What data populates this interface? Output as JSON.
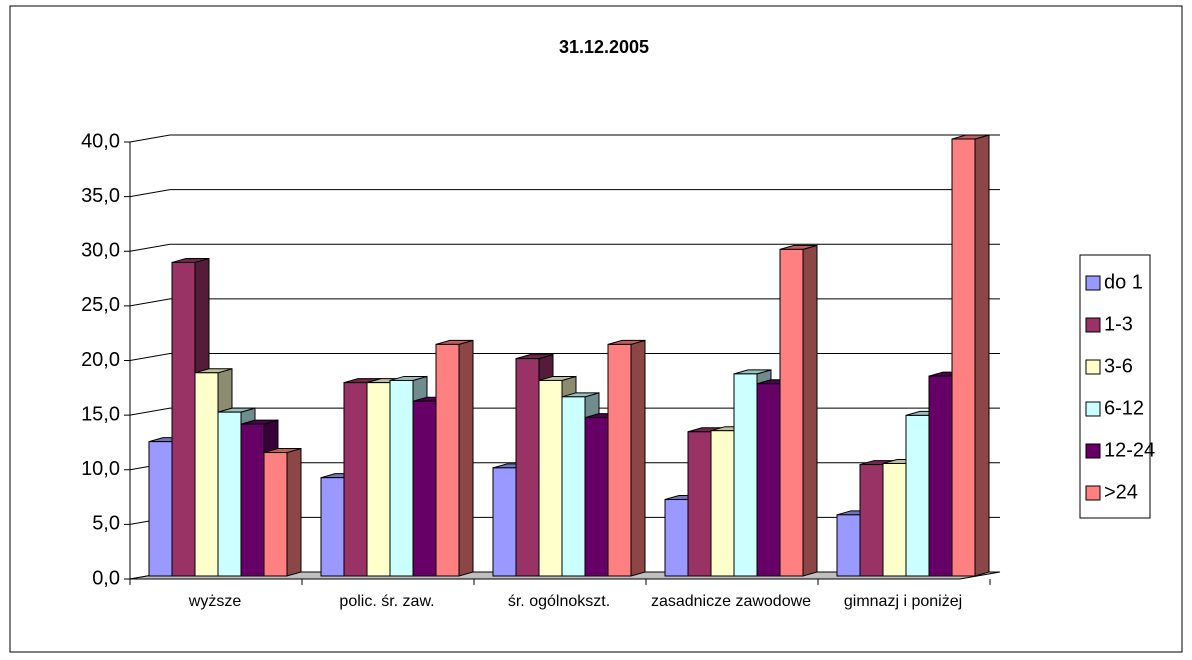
{
  "chart_data": {
    "type": "bar3d",
    "title": "31.12.2005",
    "categories": [
      "wyższe",
      "polic. śr. zaw.",
      "śr. ogólnokszt.",
      "zasadnicze zawodowe",
      "gimnazj i poniżej"
    ],
    "series": [
      {
        "name": "do 1",
        "color": "#9999ff",
        "values": [
          12.3,
          9.0,
          9.9,
          7.0,
          5.6
        ]
      },
      {
        "name": "1-3",
        "color": "#993366",
        "values": [
          28.7,
          17.7,
          19.9,
          13.2,
          10.2
        ]
      },
      {
        "name": "3-6",
        "color": "#ffffcc",
        "values": [
          18.6,
          17.7,
          17.9,
          13.3,
          10.3
        ]
      },
      {
        "name": "6-12",
        "color": "#ccffff",
        "values": [
          15.0,
          17.9,
          16.4,
          18.5,
          14.7
        ]
      },
      {
        "name": "12-24",
        "color": "#660066",
        "values": [
          13.9,
          16.0,
          14.5,
          17.6,
          18.3
        ]
      },
      {
        "name": ">24",
        "color": "#ff8080",
        "values": [
          11.3,
          21.2,
          21.2,
          29.9,
          40.0
        ]
      }
    ],
    "ylim": [
      0,
      40
    ],
    "yticks": [
      {
        "value": 0,
        "label": "0,0"
      },
      {
        "value": 5,
        "label": "5,0"
      },
      {
        "value": 10,
        "label": "10,0"
      },
      {
        "value": 15,
        "label": "15,0"
      },
      {
        "value": 20,
        "label": "20,0"
      },
      {
        "value": 25,
        "label": "25,0"
      },
      {
        "value": 30,
        "label": "30,0"
      },
      {
        "value": 35,
        "label": "35,0"
      },
      {
        "value": 40,
        "label": "40,0"
      }
    ],
    "grid": true,
    "legend": "right"
  }
}
